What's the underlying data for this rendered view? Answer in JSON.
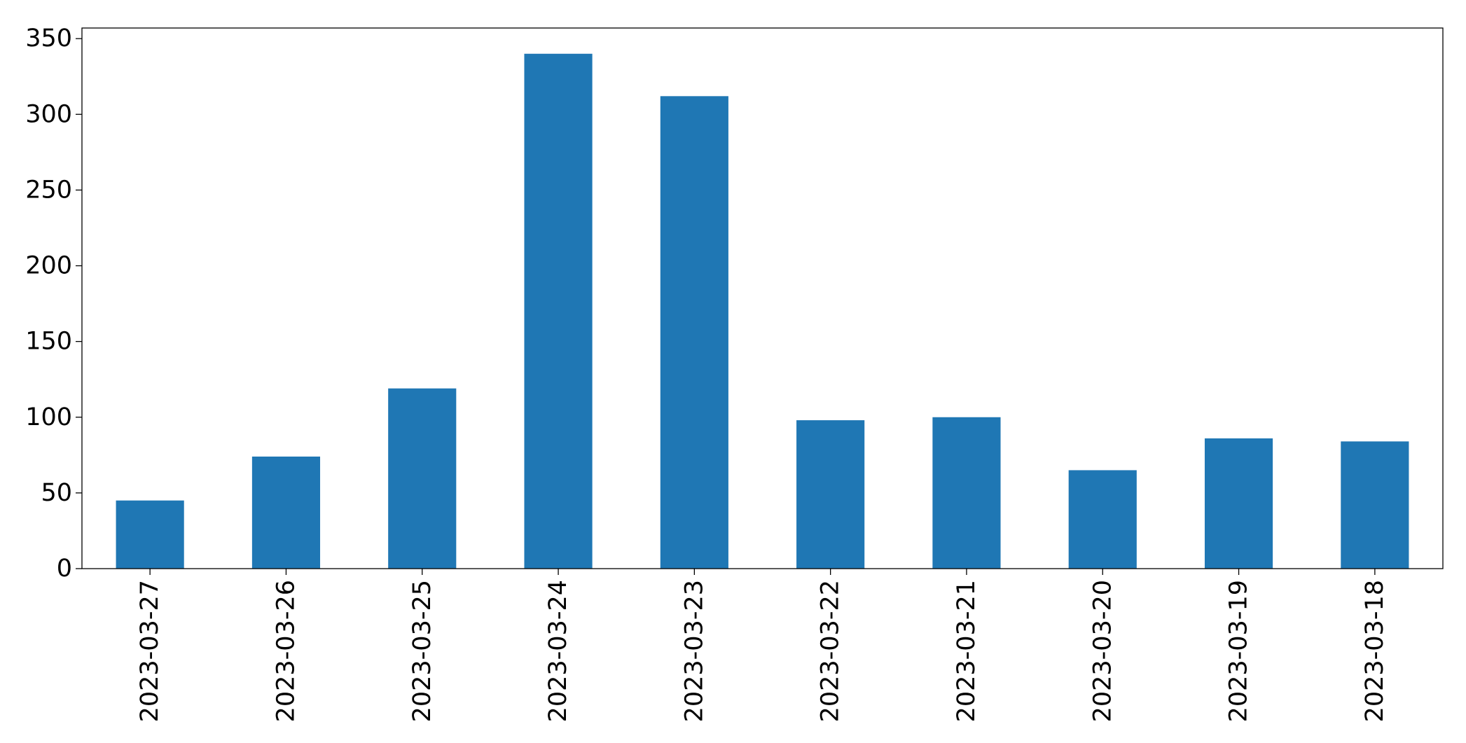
{
  "chart_data": {
    "type": "bar",
    "title": "",
    "xlabel": "",
    "ylabel": "",
    "categories": [
      "2023-03-27",
      "2023-03-26",
      "2023-03-25",
      "2023-03-24",
      "2023-03-23",
      "2023-03-22",
      "2023-03-21",
      "2023-03-20",
      "2023-03-19",
      "2023-03-18"
    ],
    "values": [
      45,
      74,
      119,
      340,
      312,
      98,
      100,
      65,
      86,
      84
    ],
    "ylim": [
      0,
      357
    ],
    "yticks": [
      0,
      50,
      100,
      150,
      200,
      250,
      300,
      350
    ],
    "grid": false,
    "legend": "none",
    "bar_color": "#1f77b4"
  }
}
